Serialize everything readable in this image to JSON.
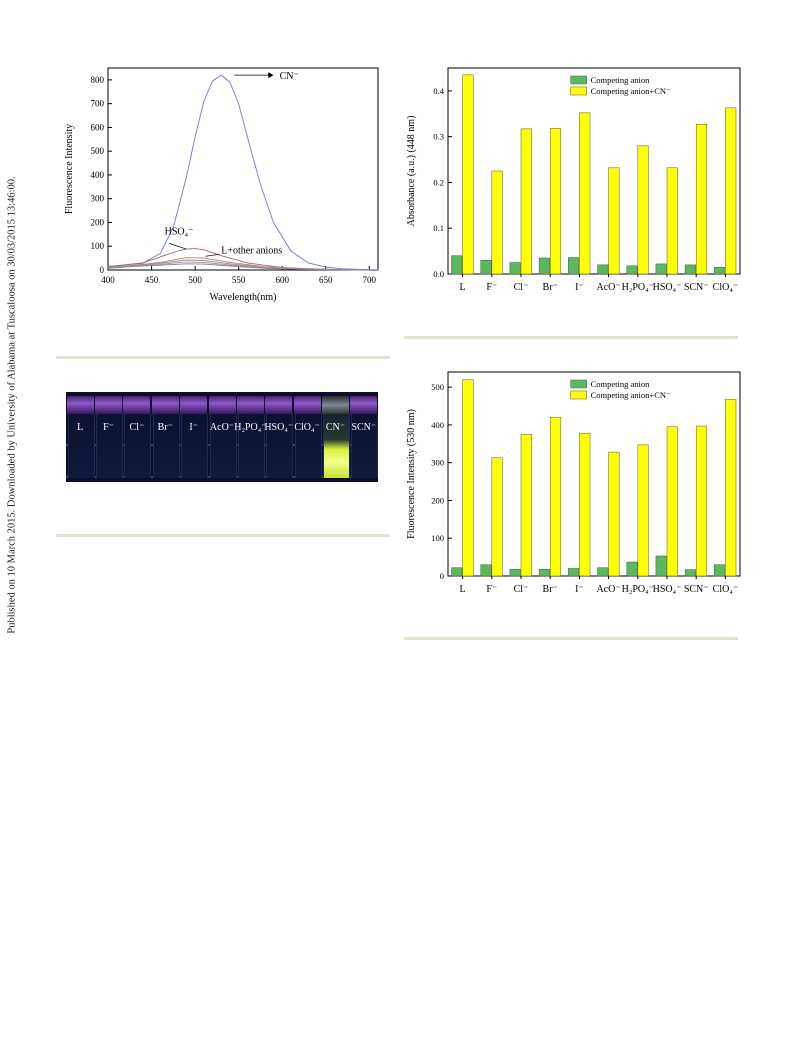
{
  "page": {
    "sidebar_text": "Published on 10 March 2015. Downloaded by University of Alabama at Tuscaloosa on 30/03/2015 13:46:00."
  },
  "colors": {
    "green_bar": "#5cb85c",
    "yellow_bar": "#ffff00",
    "cn_curve": "#7b74d6",
    "other_curves": "#b07070",
    "separator_rule": "#e3e1cc"
  },
  "photo": {
    "labels": [
      "L",
      "F⁻",
      "Cl⁻",
      "Br⁻",
      "I⁻",
      "AcO⁻",
      "H₂PO₄⁻",
      "HSO₄⁻",
      "ClO₄⁻",
      "CN⁻",
      "SCN⁻"
    ],
    "highlighted": "CN⁻"
  },
  "chart_data": [
    {
      "type": "line",
      "title": "",
      "xlabel": "Wavelength(nm)",
      "ylabel": "Fluorescence Intensity",
      "xlim": [
        400,
        710
      ],
      "ylim": [
        0,
        850
      ],
      "xticks": [
        400,
        450,
        500,
        550,
        600,
        650,
        700
      ],
      "yticks": [
        0,
        100,
        200,
        300,
        400,
        500,
        600,
        700,
        800
      ],
      "annotations": [
        "CN⁻",
        "HSO₄⁻",
        "L+other anions"
      ],
      "series": [
        {
          "name": "CN⁻",
          "x": [
            400,
            420,
            440,
            460,
            475,
            490,
            500,
            510,
            520,
            530,
            540,
            550,
            560,
            575,
            590,
            610,
            630,
            650,
            670,
            690,
            710
          ],
          "y": [
            15,
            22,
            28,
            70,
            180,
            390,
            560,
            710,
            795,
            820,
            790,
            700,
            560,
            360,
            200,
            80,
            30,
            12,
            5,
            2,
            1
          ]
        },
        {
          "name": "HSO₄⁻",
          "x": [
            400,
            420,
            440,
            460,
            480,
            490,
            500,
            510,
            530,
            560,
            600,
            650,
            700
          ],
          "y": [
            12,
            22,
            30,
            55,
            80,
            88,
            90,
            85,
            60,
            30,
            10,
            3,
            1
          ]
        },
        {
          "x": [
            400,
            430,
            460,
            490,
            510,
            540,
            580,
            630,
            700
          ],
          "y": [
            10,
            20,
            32,
            52,
            50,
            32,
            14,
            4,
            1
          ]
        },
        {
          "x": [
            400,
            430,
            460,
            490,
            510,
            540,
            580,
            630,
            700
          ],
          "y": [
            9,
            19,
            28,
            42,
            40,
            26,
            11,
            3,
            1
          ]
        },
        {
          "x": [
            400,
            430,
            460,
            490,
            510,
            540,
            580,
            630,
            700
          ],
          "y": [
            8,
            17,
            24,
            34,
            32,
            21,
            9,
            3,
            1
          ]
        },
        {
          "x": [
            400,
            430,
            460,
            490,
            510,
            540,
            580,
            630,
            700
          ],
          "y": [
            7,
            15,
            20,
            26,
            25,
            17,
            7,
            2,
            0
          ]
        }
      ]
    },
    {
      "type": "bar",
      "title": "",
      "xlabel": "",
      "ylabel": "Absorbance (a.u.) (448 nm)",
      "ylim": [
        0,
        0.45
      ],
      "yticks": [
        0.0,
        0.1,
        0.2,
        0.3,
        0.4
      ],
      "legend": "top-center",
      "categories": [
        "L",
        "F⁻",
        "Cl⁻",
        "Br⁻",
        "I⁻",
        "AcO⁻",
        "H₂PO₄⁻",
        "HSO₄⁻",
        "SCN⁻",
        "ClO₄⁻"
      ],
      "series": [
        {
          "name": "Competing anion",
          "values": [
            0.04,
            0.03,
            0.025,
            0.035,
            0.036,
            0.02,
            0.018,
            0.022,
            0.02,
            0.015
          ]
        },
        {
          "name": "Competing anion+CN⁻",
          "values": [
            0.435,
            0.225,
            0.317,
            0.318,
            0.352,
            0.232,
            0.28,
            0.232,
            0.327,
            0.363
          ]
        }
      ]
    },
    {
      "type": "bar",
      "title": "",
      "xlabel": "",
      "ylabel": "Fluorescence Intensity (530 nm)",
      "ylim": [
        0,
        540
      ],
      "yticks": [
        0,
        100,
        200,
        300,
        400,
        500
      ],
      "legend": "top-center",
      "categories": [
        "L",
        "F⁻",
        "Cl⁻",
        "Br⁻",
        "I⁻",
        "AcO⁻",
        "H₂PO₄⁻",
        "HSO₄⁻",
        "SCN⁻",
        "ClO₄⁻"
      ],
      "series": [
        {
          "name": "Competing anion",
          "values": [
            22,
            30,
            18,
            18,
            20,
            22,
            37,
            53,
            17,
            30
          ]
        },
        {
          "name": "Competing anion+CN⁻",
          "values": [
            520,
            313,
            375,
            420,
            378,
            328,
            347,
            395,
            397,
            468
          ]
        }
      ]
    }
  ]
}
